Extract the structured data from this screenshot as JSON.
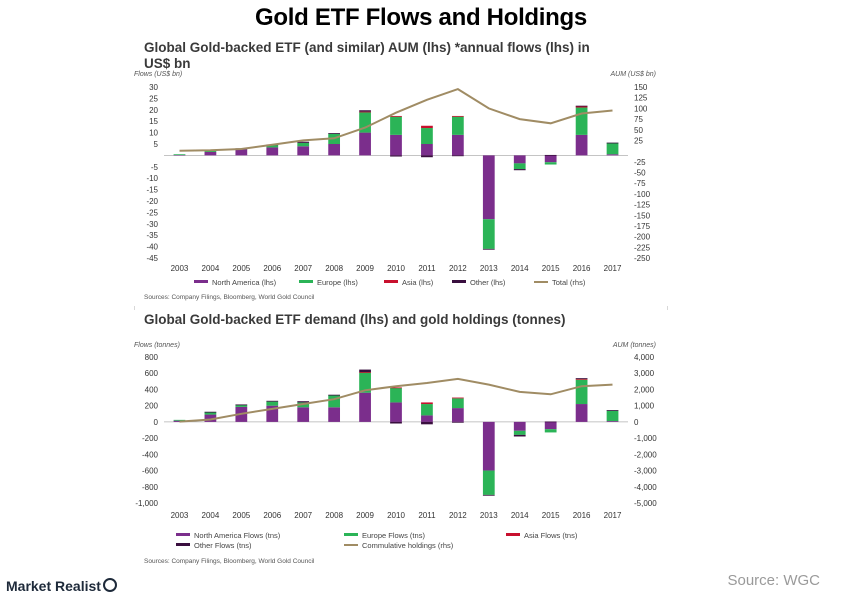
{
  "page_title": "Gold ETF Flows and Holdings",
  "logo_text": "Market Realist",
  "source_label": "Source: WGC",
  "colors": {
    "north_america": "#7b2e8c",
    "europe": "#2bb457",
    "asia": "#c8102e",
    "other": "#3a0f3f",
    "total": "#a08c64"
  },
  "chart_data": [
    {
      "type": "bar",
      "title": "Global Gold-backed ETF (and similar) AUM (lhs) *annual flows (lhs) in US$ bn",
      "ylabel": "Flows (US$ bn)",
      "y2label": "AUM (US$ bn)",
      "ylim": [
        -45,
        30
      ],
      "yticks": [
        30,
        25,
        20,
        15,
        10,
        5,
        -5,
        -10,
        -15,
        -20,
        -25,
        -30,
        -35,
        -40,
        -45
      ],
      "y2lim": [
        -250,
        150
      ],
      "y2ticks": [
        150,
        125,
        100,
        75,
        50,
        25,
        -25,
        -50,
        -75,
        -100,
        -125,
        -150,
        -175,
        -200,
        -225,
        -250
      ],
      "categories": [
        "2003",
        "2004",
        "2005",
        "2006",
        "2007",
        "2008",
        "2009",
        "2010",
        "2011",
        "2012",
        "2013",
        "2014",
        "2015",
        "2016",
        "2017"
      ],
      "series": [
        {
          "name": "North America (lhs)",
          "key": "north_america",
          "values": [
            0.3,
            1.5,
            2.7,
            3.5,
            4.0,
            5.0,
            10,
            9,
            5,
            9,
            -28,
            -3.5,
            -3,
            9,
            0.5
          ]
        },
        {
          "name": "Europe (lhs)",
          "key": "europe",
          "values": [
            0.2,
            0.8,
            0.3,
            1.0,
            1.5,
            4.5,
            9,
            8,
            7,
            8,
            -13,
            -2.5,
            -1,
            12,
            5.0
          ]
        },
        {
          "name": "Asia (lhs)",
          "key": "asia",
          "values": [
            0,
            0,
            0,
            0,
            0,
            0,
            0.2,
            0.3,
            1.0,
            0.3,
            0,
            0,
            0,
            0.6,
            0
          ]
        },
        {
          "name": "Other (lhs)",
          "key": "other",
          "values": [
            0,
            0.1,
            0.1,
            0.3,
            0.5,
            0.3,
            0.6,
            -0.5,
            -0.8,
            -0.2,
            -0.3,
            -0.5,
            0.2,
            0.2,
            0.1
          ]
        }
      ],
      "line": {
        "name": "Total (rhs)",
        "key": "total",
        "values": [
          1,
          2,
          5,
          15,
          25,
          30,
          55,
          90,
          120,
          145,
          100,
          75,
          65,
          88,
          95
        ]
      },
      "legend": [
        "North America (lhs)",
        "Europe (lhs)",
        "Asia (lhs)",
        "Other (lhs)",
        "Total (rhs)"
      ],
      "note": "Sources: Company Filings, Bloomberg, World Gold Council"
    },
    {
      "type": "bar",
      "title": "Global Gold-backed ETF demand (lhs) and gold holdings (tonnes)",
      "ylabel": "Flows (tonnes)",
      "y2label": "AUM (tonnes)",
      "ylim": [
        -1000,
        800
      ],
      "yticks": [
        "800",
        "600",
        "400",
        "200",
        "0",
        "-200",
        "-400",
        "-600",
        "-800",
        "-1,000"
      ],
      "y2lim": [
        -5000,
        4000
      ],
      "y2ticks": [
        "4,000",
        "3,000",
        "2,000",
        "1,000",
        "0",
        "-1,000",
        "-2,000",
        "-3,000",
        "-4,000",
        "-5,000"
      ],
      "categories": [
        "2003",
        "2004",
        "2005",
        "2006",
        "2007",
        "2008",
        "2009",
        "2010",
        "2011",
        "2012",
        "2013",
        "2014",
        "2015",
        "2016",
        "2017"
      ],
      "series": [
        {
          "name": "North America Flows (tns)",
          "key": "north_america",
          "values": [
            15,
            90,
            185,
            200,
            180,
            180,
            360,
            240,
            80,
            170,
            -600,
            -110,
            -90,
            220,
            10
          ]
        },
        {
          "name": "Europe Flows (tns)",
          "key": "europe",
          "values": [
            10,
            30,
            25,
            50,
            60,
            150,
            250,
            180,
            140,
            120,
            -300,
            -50,
            -40,
            300,
            130
          ]
        },
        {
          "name": "Asia Flows (tns)",
          "key": "asia",
          "values": [
            0,
            0,
            0,
            0,
            0,
            0,
            5,
            5,
            20,
            10,
            0,
            0,
            0,
            10,
            0
          ]
        },
        {
          "name": "Other Flows (tns)",
          "key": "other",
          "values": [
            0,
            5,
            5,
            10,
            15,
            5,
            30,
            -20,
            -30,
            -10,
            -10,
            -20,
            5,
            10,
            5
          ]
        }
      ],
      "line": {
        "name": "Commulative holdings (rhs)",
        "key": "total",
        "values": [
          20,
          150,
          500,
          800,
          1100,
          1400,
          1950,
          2200,
          2400,
          2650,
          2300,
          1850,
          1700,
          2200,
          2300
        ]
      },
      "legend": [
        "North America Flows (tns)",
        "Europe Flows (tns)",
        "Asia Flows (tns)",
        "Other Flows (tns)",
        "Commulative holdings (rhs)"
      ],
      "note": "Sources: Company Filings, Bloomberg, World Gold Council"
    }
  ]
}
